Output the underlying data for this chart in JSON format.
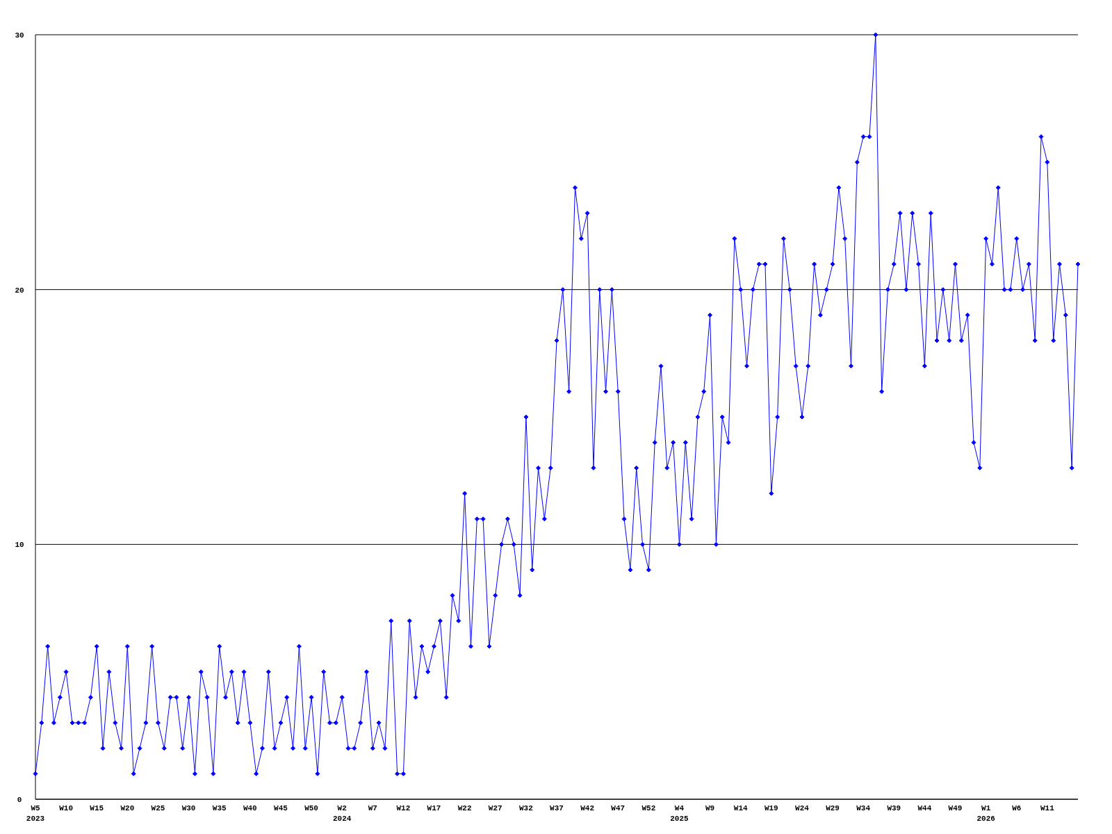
{
  "chart_data": {
    "type": "line",
    "categories": [
      "W5\n2023",
      null,
      null,
      null,
      null,
      "W10",
      null,
      null,
      null,
      null,
      "W15",
      null,
      null,
      null,
      null,
      "W20",
      null,
      null,
      null,
      null,
      "W25",
      null,
      null,
      null,
      null,
      "W30",
      null,
      null,
      null,
      null,
      "W35",
      null,
      null,
      null,
      null,
      "W40",
      null,
      null,
      null,
      null,
      "W45",
      null,
      null,
      null,
      null,
      "W50",
      null,
      null,
      null,
      null,
      "W2\n2024",
      null,
      null,
      null,
      null,
      "W7",
      null,
      null,
      null,
      null,
      "W12",
      null,
      null,
      null,
      null,
      "W17",
      null,
      null,
      null,
      null,
      "W22",
      null,
      null,
      null,
      null,
      "W27",
      null,
      null,
      null,
      null,
      "W32",
      null,
      null,
      null,
      null,
      "W37",
      null,
      null,
      null,
      null,
      "W42",
      null,
      null,
      null,
      null,
      "W47",
      null,
      null,
      null,
      null,
      "W52",
      null,
      null,
      null,
      null,
      "W4\n2025",
      null,
      null,
      null,
      null,
      "W9",
      null,
      null,
      null,
      null,
      "W14",
      null,
      null,
      null,
      null,
      "W19",
      null,
      null,
      null,
      null,
      "W24",
      null,
      null,
      null,
      null,
      "W29",
      null,
      null,
      null,
      null,
      "W34",
      null,
      null,
      null,
      null,
      "W39",
      null,
      null,
      null,
      null,
      "W44",
      null,
      null,
      null,
      null,
      "W49",
      null,
      null,
      null,
      null,
      "W1\n2026",
      null,
      null,
      null,
      null,
      "W6",
      null,
      null,
      null,
      null,
      "W11",
      null,
      null,
      null,
      null,
      null
    ],
    "series": [
      {
        "color": "#0000ff",
        "values": [
          1,
          3,
          6,
          3,
          4,
          5,
          3,
          3,
          3,
          4,
          6,
          2,
          5,
          3,
          2,
          6,
          1,
          2,
          3,
          6,
          3,
          2,
          4,
          4,
          2,
          4,
          1,
          5,
          4,
          1,
          6,
          4,
          5,
          3,
          5,
          3,
          1,
          2,
          5,
          2,
          3,
          4,
          2,
          6,
          2,
          4,
          1,
          5,
          3,
          3,
          4,
          2,
          2,
          3,
          5,
          2,
          3,
          2,
          7,
          1,
          1,
          7,
          4,
          6,
          5,
          6,
          7,
          4,
          8,
          7,
          12,
          6,
          11,
          11,
          6,
          8,
          10,
          11,
          10,
          8,
          15,
          9,
          13,
          11,
          13,
          18,
          20,
          16,
          24,
          22,
          23,
          13,
          20,
          16,
          20,
          16,
          11,
          9,
          13,
          10,
          9,
          14,
          17,
          13,
          14,
          10,
          14,
          11,
          15,
          16,
          19,
          10,
          15,
          14,
          22,
          20,
          17,
          20,
          21,
          21,
          12,
          15,
          22,
          20,
          17,
          15,
          17,
          21,
          19,
          20,
          21,
          24,
          22,
          17,
          25,
          26,
          26,
          30,
          16,
          20,
          21,
          23,
          20,
          23,
          21,
          17,
          23,
          18,
          20,
          18,
          21,
          18,
          19,
          14,
          13,
          22,
          21,
          24,
          20,
          20,
          22,
          20,
          21,
          18,
          26,
          25,
          18,
          21,
          19,
          13,
          21
        ]
      }
    ],
    "ylim": [
      0,
      30
    ],
    "yticks": [
      0,
      10,
      20,
      30
    ],
    "grid": "y",
    "marker": "diamond",
    "line_style": "solid"
  }
}
